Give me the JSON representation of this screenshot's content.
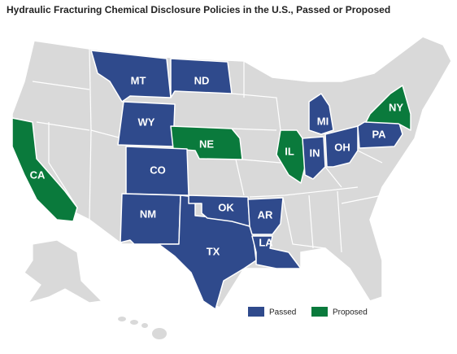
{
  "title": "Hydraulic Fracturing Chemical Disclosure Policies in the U.S., Passed or Proposed",
  "legend": [
    {
      "label": "Passed",
      "color": "#2f4a8c"
    },
    {
      "label": "Proposed",
      "color": "#0a7a3c"
    }
  ],
  "states": [
    {
      "label": "MT",
      "policy": "Passed"
    },
    {
      "label": "ND",
      "policy": "Passed"
    },
    {
      "label": "WY",
      "policy": "Passed"
    },
    {
      "label": "NE",
      "policy": "Proposed"
    },
    {
      "label": "CO",
      "policy": "Passed"
    },
    {
      "label": "NM",
      "policy": "Passed"
    },
    {
      "label": "TX",
      "policy": "Passed"
    },
    {
      "label": "OK",
      "policy": "Passed"
    },
    {
      "label": "AR",
      "policy": "Passed"
    },
    {
      "label": "LA",
      "policy": "Passed"
    },
    {
      "label": "IL",
      "policy": "Proposed"
    },
    {
      "label": "IN",
      "policy": "Passed"
    },
    {
      "label": "MI",
      "policy": "Passed"
    },
    {
      "label": "OH",
      "policy": "Passed"
    },
    {
      "label": "PA",
      "policy": "Passed"
    },
    {
      "label": "NY",
      "policy": "Proposed"
    },
    {
      "label": "CA",
      "policy": "Proposed"
    }
  ]
}
